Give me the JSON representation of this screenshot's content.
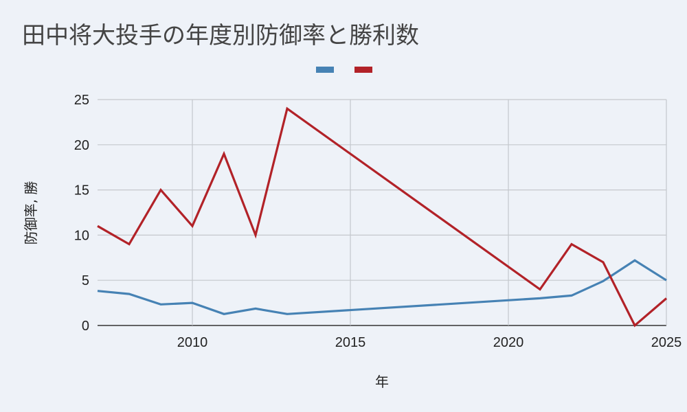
{
  "chart_data": {
    "type": "line",
    "title": "田中将大投手の年度別防御率と勝利数",
    "xlabel": "年",
    "ylabel": "防御率, 勝",
    "xlim": [
      2007,
      2025
    ],
    "ylim": [
      0,
      25
    ],
    "x_ticks": [
      2010,
      2015,
      2020,
      2025
    ],
    "y_ticks": [
      0,
      5,
      10,
      15,
      20,
      25
    ],
    "grid": true,
    "legend_position": "top-center",
    "x": [
      2007,
      2008,
      2009,
      2010,
      2011,
      2012,
      2013,
      2021,
      2022,
      2023,
      2024,
      2025
    ],
    "series": [
      {
        "color": "#4682b4",
        "values": [
          3.82,
          3.49,
          2.33,
          2.5,
          1.27,
          1.87,
          1.27,
          3.01,
          3.31,
          4.91,
          7.2,
          5.0
        ]
      },
      {
        "color": "#b22228",
        "values": [
          11,
          9,
          15,
          11,
          19,
          10,
          24,
          4,
          9,
          7,
          0,
          3
        ]
      }
    ]
  }
}
